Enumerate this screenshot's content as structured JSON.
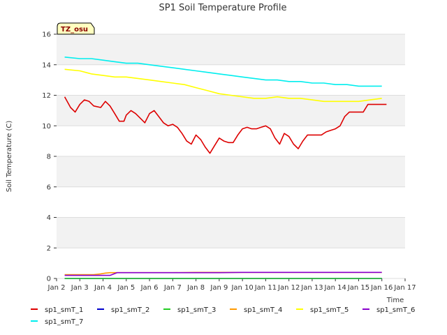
{
  "chart_data": {
    "type": "line",
    "title": "SP1 Soil Temperature Profile",
    "xlabel": "Time",
    "ylabel": "Soil Temperature (C)",
    "badge": "TZ_osu",
    "xlim": [
      2,
      17
    ],
    "ylim": [
      0,
      16
    ],
    "x_ticks": [
      {
        "v": 2,
        "label": "Jan 2"
      },
      {
        "v": 3,
        "label": "Jan 3"
      },
      {
        "v": 4,
        "label": "Jan 4"
      },
      {
        "v": 5,
        "label": "Jan 5"
      },
      {
        "v": 6,
        "label": "Jan 6"
      },
      {
        "v": 7,
        "label": "Jan 7"
      },
      {
        "v": 8,
        "label": "Jan 8"
      },
      {
        "v": 9,
        "label": "Jan 9"
      },
      {
        "v": 10,
        "label": "Jan 10"
      },
      {
        "v": 11,
        "label": "Jan 11"
      },
      {
        "v": 12,
        "label": "Jan 12"
      },
      {
        "v": 13,
        "label": "Jan 13"
      },
      {
        "v": 14,
        "label": "Jan 14"
      },
      {
        "v": 15,
        "label": "Jan 15"
      },
      {
        "v": 16,
        "label": "Jan 16"
      },
      {
        "v": 17,
        "label": "Jan 17"
      }
    ],
    "y_ticks": [
      {
        "v": 0,
        "label": "0"
      },
      {
        "v": 2,
        "label": "2"
      },
      {
        "v": 4,
        "label": "4"
      },
      {
        "v": 6,
        "label": "6"
      },
      {
        "v": 8,
        "label": "8"
      },
      {
        "v": 10,
        "label": "10"
      },
      {
        "v": 12,
        "label": "12"
      },
      {
        "v": 14,
        "label": "14"
      },
      {
        "v": 16,
        "label": "16"
      }
    ],
    "grid": true,
    "legend_position": "bottom",
    "series": [
      {
        "name": "sp1_smT_1",
        "color": "#dd0000",
        "x": [
          2.35,
          2.6,
          2.8,
          3.0,
          3.2,
          3.4,
          3.6,
          3.9,
          4.1,
          4.3,
          4.5,
          4.7,
          4.9,
          5.0,
          5.2,
          5.4,
          5.6,
          5.8,
          6.0,
          6.2,
          6.4,
          6.6,
          6.8,
          7.0,
          7.2,
          7.4,
          7.6,
          7.8,
          8.0,
          8.2,
          8.4,
          8.6,
          8.8,
          9.0,
          9.2,
          9.4,
          9.6,
          9.8,
          10.0,
          10.2,
          10.4,
          10.6,
          10.8,
          11.0,
          11.2,
          11.4,
          11.6,
          11.8,
          12.0,
          12.2,
          12.4,
          12.6,
          12.8,
          13.0,
          13.2,
          13.4,
          13.6,
          13.8,
          14.0,
          14.2,
          14.4,
          14.6,
          14.8,
          15.0,
          15.2,
          15.4,
          15.6,
          15.8,
          16.0,
          16.2
        ],
        "y": [
          11.9,
          11.2,
          10.9,
          11.4,
          11.7,
          11.6,
          11.3,
          11.2,
          11.6,
          11.3,
          10.8,
          10.3,
          10.3,
          10.7,
          11.0,
          10.8,
          10.5,
          10.2,
          10.8,
          11.0,
          10.6,
          10.2,
          10.0,
          10.1,
          9.9,
          9.5,
          9.0,
          8.8,
          9.4,
          9.1,
          8.6,
          8.2,
          8.7,
          9.2,
          9.0,
          8.9,
          8.9,
          9.4,
          9.8,
          9.9,
          9.8,
          9.8,
          9.9,
          10.0,
          9.8,
          9.2,
          8.8,
          9.5,
          9.3,
          8.8,
          8.5,
          9.0,
          9.4,
          9.4,
          9.4,
          9.4,
          9.6,
          9.7,
          9.8,
          10.0,
          10.6,
          10.9,
          10.9,
          10.9,
          10.9,
          11.4,
          11.4,
          11.4,
          11.4,
          11.4
        ]
      },
      {
        "name": "sp1_smT_2",
        "color": "#0000cc",
        "x": [
          2.35,
          16.0
        ],
        "y": [
          0.0,
          0.0
        ]
      },
      {
        "name": "sp1_smT_3",
        "color": "#22cc22",
        "x": [
          2.35,
          16.0
        ],
        "y": [
          0.0,
          0.0
        ]
      },
      {
        "name": "sp1_smT_4",
        "color": "#ff9900",
        "x": [
          2.35,
          3.0,
          3.6,
          3.9,
          4.1,
          4.3,
          4.5,
          5.0,
          6.0,
          7.0,
          8.0,
          9.0,
          10.0,
          11.0,
          12.0,
          13.0,
          14.0,
          15.0,
          16.0
        ],
        "y": [
          0.25,
          0.25,
          0.25,
          0.3,
          0.35,
          0.38,
          0.38,
          0.38,
          0.38,
          0.38,
          0.4,
          0.4,
          0.4,
          0.4,
          0.4,
          0.4,
          0.4,
          0.4,
          0.4
        ]
      },
      {
        "name": "sp1_smT_5",
        "color": "#ffff00",
        "x": [
          2.35,
          3.0,
          3.5,
          4.0,
          4.5,
          5.0,
          5.5,
          6.0,
          6.5,
          7.0,
          7.5,
          8.0,
          8.5,
          9.0,
          9.5,
          10.0,
          10.5,
          11.0,
          11.5,
          12.0,
          12.5,
          13.0,
          13.5,
          14.0,
          14.5,
          15.0,
          15.5,
          16.0
        ],
        "y": [
          13.7,
          13.6,
          13.4,
          13.3,
          13.2,
          13.2,
          13.1,
          13.0,
          12.9,
          12.8,
          12.7,
          12.5,
          12.3,
          12.1,
          12.0,
          11.9,
          11.8,
          11.8,
          11.9,
          11.8,
          11.8,
          11.7,
          11.6,
          11.6,
          11.6,
          11.6,
          11.7,
          11.8
        ]
      },
      {
        "name": "sp1_smT_6",
        "color": "#8800cc",
        "x": [
          2.35,
          3.0,
          3.5,
          4.0,
          4.3,
          4.6,
          5.0,
          6.0,
          7.0,
          8.0,
          9.0,
          10.0,
          11.0,
          12.0,
          13.0,
          14.0,
          15.0,
          16.0
        ],
        "y": [
          0.2,
          0.2,
          0.2,
          0.2,
          0.2,
          0.38,
          0.38,
          0.38,
          0.38,
          0.38,
          0.38,
          0.4,
          0.4,
          0.4,
          0.4,
          0.4,
          0.4,
          0.4
        ]
      },
      {
        "name": "sp1_smT_7",
        "color": "#00eeee",
        "x": [
          2.35,
          3.0,
          3.5,
          4.0,
          4.5,
          5.0,
          5.5,
          6.0,
          6.5,
          7.0,
          7.5,
          8.0,
          8.5,
          9.0,
          9.5,
          10.0,
          10.5,
          11.0,
          11.5,
          12.0,
          12.5,
          13.0,
          13.5,
          14.0,
          14.5,
          15.0,
          15.5,
          16.0
        ],
        "y": [
          14.5,
          14.4,
          14.4,
          14.3,
          14.2,
          14.1,
          14.1,
          14.0,
          13.9,
          13.8,
          13.7,
          13.6,
          13.5,
          13.4,
          13.3,
          13.2,
          13.1,
          13.0,
          13.0,
          12.9,
          12.9,
          12.8,
          12.8,
          12.7,
          12.7,
          12.6,
          12.6,
          12.6
        ]
      }
    ]
  }
}
